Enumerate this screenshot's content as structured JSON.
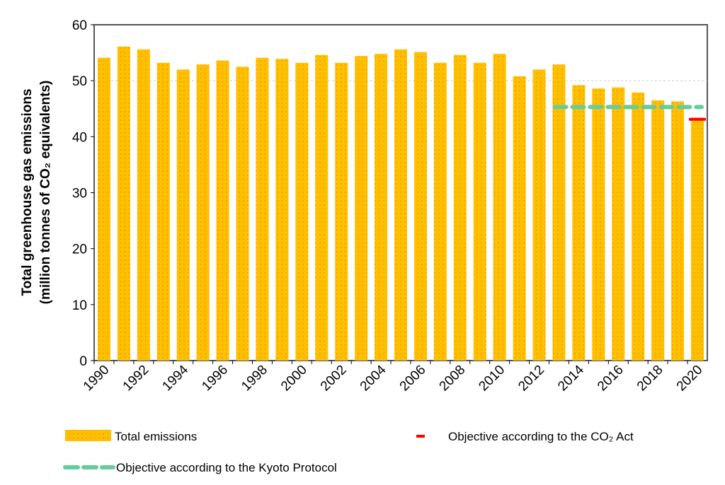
{
  "chart_data": {
    "type": "bar",
    "title": "",
    "xlabel": "",
    "ylabel_line1": "Total greenhouse gas emissions",
    "ylabel_line2": "(million tonnes of CO₂ equivalents)",
    "ylim": [
      0,
      60
    ],
    "yticks": [
      0,
      10,
      20,
      30,
      40,
      50,
      60
    ],
    "categories": [
      1990,
      1991,
      1992,
      1993,
      1994,
      1995,
      1996,
      1997,
      1998,
      1999,
      2000,
      2001,
      2002,
      2003,
      2004,
      2005,
      2006,
      2007,
      2008,
      2009,
      2010,
      2011,
      2012,
      2013,
      2014,
      2015,
      2016,
      2017,
      2018,
      2019,
      2020
    ],
    "xtick_labels": [
      "1990",
      "1992",
      "1994",
      "1996",
      "1998",
      "2000",
      "2002",
      "2004",
      "2006",
      "2008",
      "2010",
      "2012",
      "2014",
      "2016",
      "2018",
      "2020"
    ],
    "series": [
      {
        "name": "Total emissions",
        "color": "#FFC000",
        "values": [
          54.1,
          56.1,
          55.6,
          53.2,
          52.0,
          52.9,
          53.6,
          52.5,
          54.1,
          53.9,
          53.2,
          54.6,
          53.2,
          54.4,
          54.8,
          55.6,
          55.1,
          53.2,
          54.6,
          53.2,
          54.8,
          50.8,
          52.0,
          52.9,
          49.2,
          48.6,
          48.8,
          47.9,
          46.5,
          46.3,
          43.4
        ]
      }
    ],
    "lines": [
      {
        "name": "Objective according to the Kyoto Protocol",
        "color": "#66CC99",
        "style": "dashed",
        "value": 45.3,
        "from": 2013,
        "to": 2020
      },
      {
        "name": "Objective according to the CO₂ Act",
        "color": "#FF0000",
        "style": "solid",
        "value": 43.1,
        "from": 2020,
        "to": 2020
      }
    ],
    "grid": "horizontal at 50",
    "legend_placement": "bottom"
  }
}
